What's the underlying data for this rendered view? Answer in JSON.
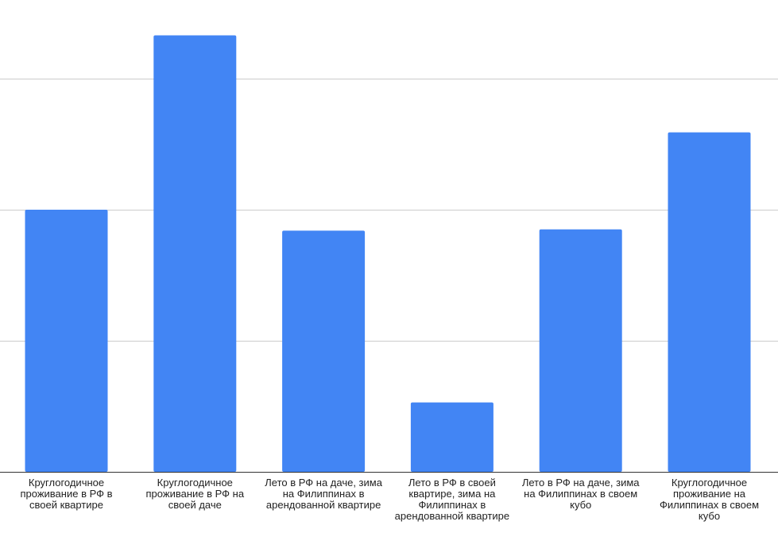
{
  "chart_data": {
    "type": "bar",
    "categories": [
      "Круглогодичное проживание в РФ в своей квартире",
      "Круглогодичное проживание в РФ на своей даче",
      "Лето в РФ на даче, зима на Филиппинах в арендованной квартире",
      "Лето в РФ в своей квартире, зима на Филиппинах в арендованной квартире",
      "Лето в РФ на даче, зима на Филиппинах в своем кубо",
      "Круглогодичное проживание на Филиппинах в своем кубо"
    ],
    "values": [
      2.0,
      3.33,
      1.84,
      0.53,
      1.85,
      2.59
    ],
    "ylim": [
      0,
      3.6
    ],
    "grid_values": [
      1,
      2,
      3
    ],
    "grid": true,
    "title": "",
    "xlabel": "",
    "ylabel": "",
    "colors": {
      "bar": "#4285f4",
      "grid": "#cccccc",
      "axis": "#333333"
    }
  }
}
